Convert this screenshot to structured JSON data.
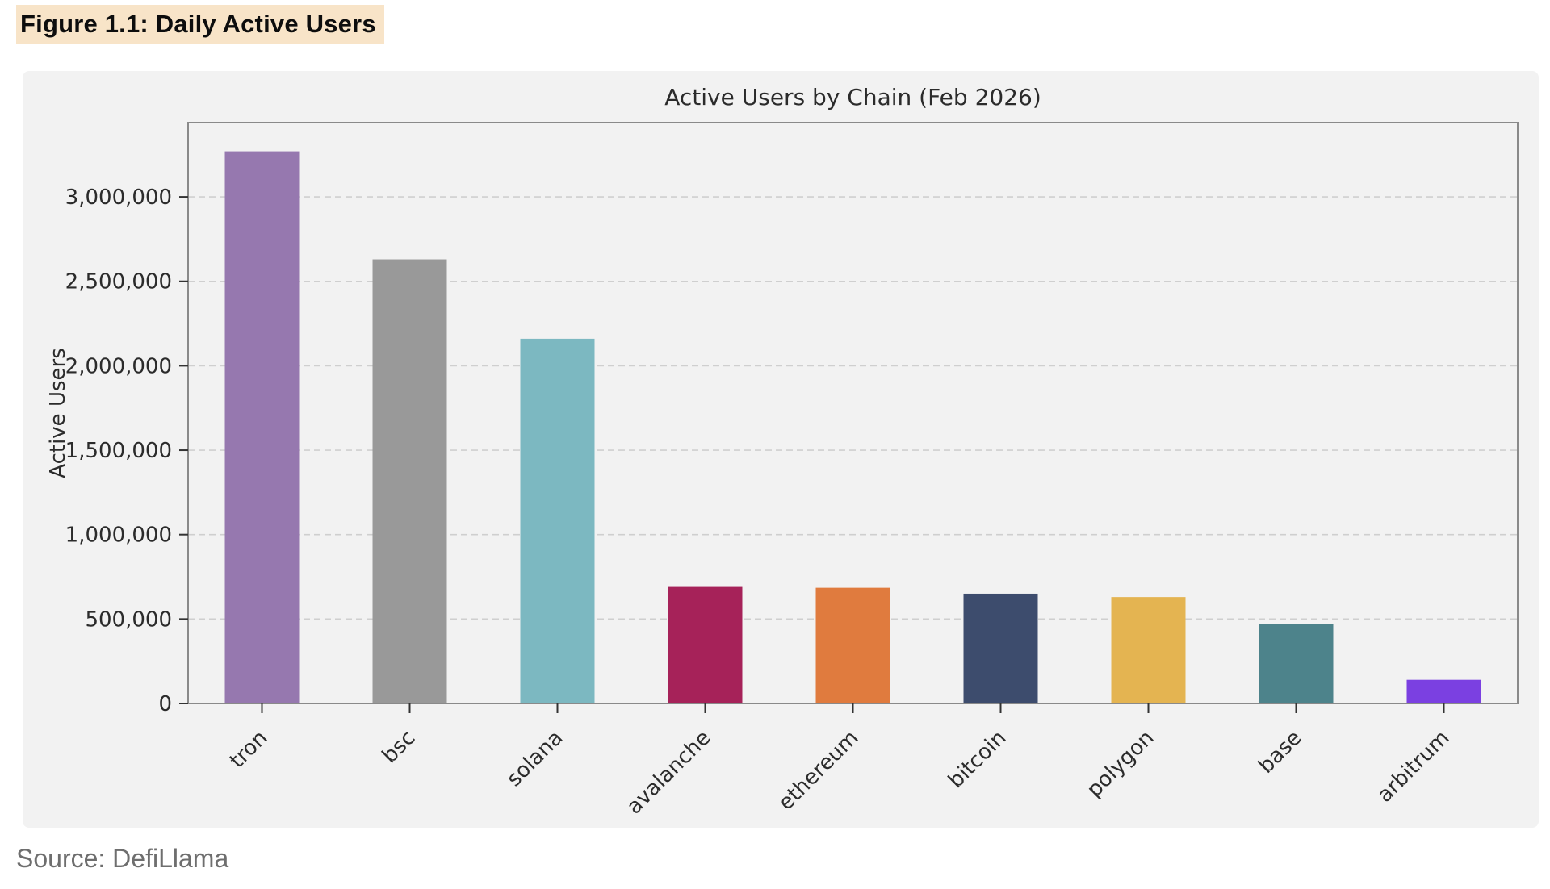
{
  "page": {
    "heading": "Figure 1.1: Daily Active Users",
    "source": "Source: DefiLlama",
    "highlight_color": "#f8e4c8",
    "panel_bg": "#f2f2f2"
  },
  "chart_data": {
    "type": "bar",
    "title": "Active Users by Chain (Feb 2026)",
    "xlabel": "",
    "ylabel": "Active Users",
    "categories": [
      "tron",
      "bsc",
      "solana",
      "avalanche",
      "ethereum",
      "bitcoin",
      "polygon",
      "base",
      "arbitrum"
    ],
    "values": [
      3270000,
      2630000,
      2160000,
      690000,
      685000,
      650000,
      630000,
      470000,
      140000
    ],
    "bar_colors": [
      "#9678af",
      "#999999",
      "#7cb8c1",
      "#a62259",
      "#e07b3e",
      "#3d4c6d",
      "#e4b451",
      "#4d838b",
      "#7b40e1"
    ],
    "ylim": [
      0,
      3440000
    ],
    "yticks": [
      0,
      500000,
      1000000,
      1500000,
      2000000,
      2500000,
      3000000
    ],
    "grid": true,
    "legend": "none",
    "x_tick_rotation_deg": 45,
    "styles": {
      "plot_bg": "#f2f2f2",
      "spine_color": "#8a8a8a",
      "grid_color": "#cfcfcf",
      "tick_color": "#333333",
      "text_color": "#2b2b2b"
    }
  }
}
